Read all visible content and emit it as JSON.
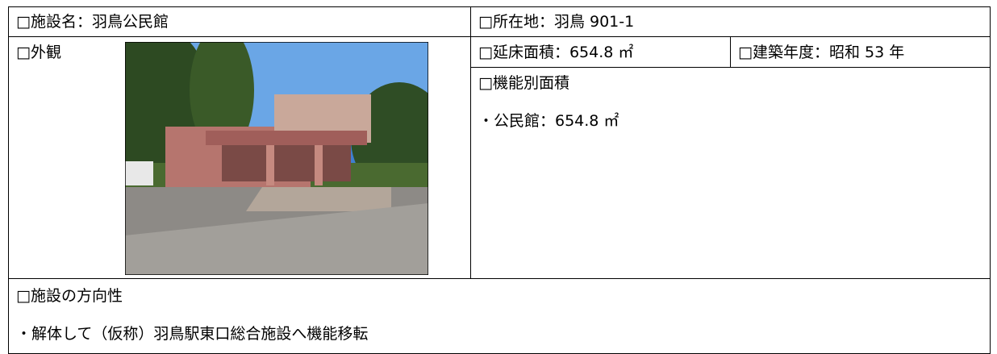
{
  "table": {
    "rows": [
      [
        "□施設名：羽鳥公民館",
        "□所在地：羽鳥 901-1"
      ],
      [
        "□外観",
        "□延床面積：654.8 ㎡",
        "□建築年度：昭和 53 年"
      ],
      [
        "□機能別面積",
        "・公民館：654.8 ㎡"
      ],
      [
        "□施設の方向性",
        "・解体して（仮称）羽鳥駅東口総合施設へ機能移転"
      ]
    ]
  }
}
